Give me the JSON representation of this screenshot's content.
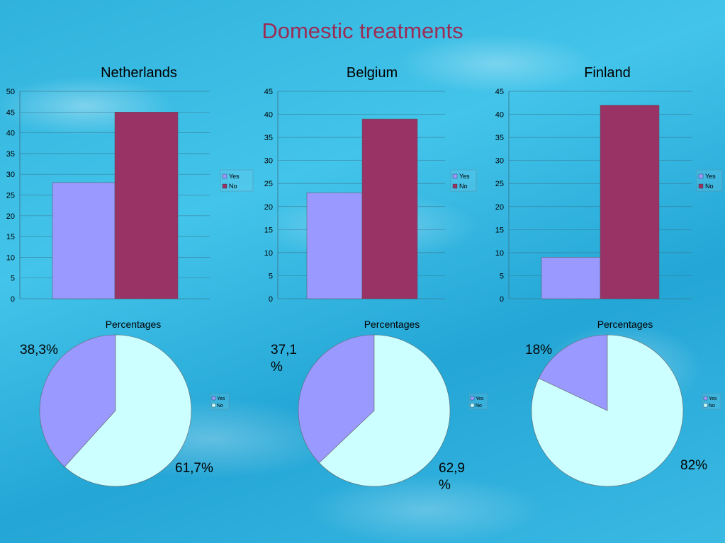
{
  "title": "Domestic treatments",
  "chart_data": [
    {
      "type": "bar",
      "title": "Netherlands",
      "categories": [
        "Yes",
        "No"
      ],
      "values": [
        28,
        45
      ],
      "ylim": [
        0,
        50
      ],
      "yticks": [
        0,
        5,
        10,
        15,
        20,
        25,
        30,
        35,
        40,
        45,
        50
      ],
      "legend": [
        "Yes",
        "No"
      ],
      "colors": [
        "#9999ff",
        "#993366"
      ],
      "grid": true
    },
    {
      "type": "bar",
      "title": "Belgium",
      "categories": [
        "Yes",
        "No"
      ],
      "values": [
        23,
        39
      ],
      "ylim": [
        0,
        45
      ],
      "yticks": [
        0,
        5,
        10,
        15,
        20,
        25,
        30,
        35,
        40,
        45
      ],
      "legend": [
        "Yes",
        "No"
      ],
      "colors": [
        "#9999ff",
        "#993366"
      ],
      "grid": true
    },
    {
      "type": "bar",
      "title": "Finland",
      "categories": [
        "Yes",
        "No"
      ],
      "values": [
        9,
        42
      ],
      "ylim": [
        0,
        45
      ],
      "yticks": [
        0,
        5,
        10,
        15,
        20,
        25,
        30,
        35,
        40,
        45
      ],
      "legend": [
        "Yes",
        "No"
      ],
      "colors": [
        "#9999ff",
        "#993366"
      ],
      "grid": true
    },
    {
      "type": "pie",
      "title": "Percentages",
      "categories": [
        "Yes",
        "No"
      ],
      "values": [
        38.3,
        61.7
      ],
      "labels": [
        "38,3%",
        "61,7%"
      ],
      "legend": [
        "Yes",
        "No"
      ],
      "colors": [
        "#9999ff",
        "#ccffff"
      ]
    },
    {
      "type": "pie",
      "title": "Percentages",
      "categories": [
        "Yes",
        "No"
      ],
      "values": [
        37.1,
        62.9
      ],
      "labels": [
        "37,1\n%",
        "62,9\n%"
      ],
      "legend": [
        "Yes",
        "No"
      ],
      "colors": [
        "#9999ff",
        "#ccffff"
      ]
    },
    {
      "type": "pie",
      "title": "Percentages",
      "categories": [
        "Yes",
        "No"
      ],
      "values": [
        18,
        82
      ],
      "labels": [
        "18%",
        "82%"
      ],
      "legend": [
        "Yes",
        "No"
      ],
      "colors": [
        "#9999ff",
        "#ccffff"
      ]
    }
  ]
}
